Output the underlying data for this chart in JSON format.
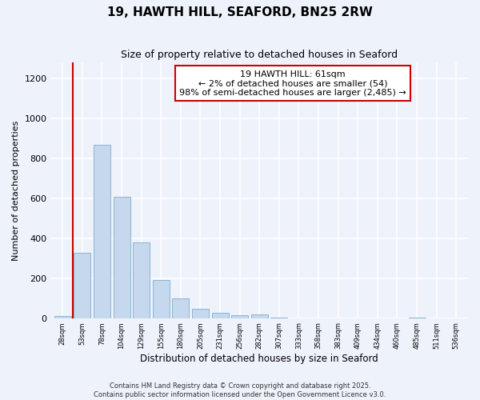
{
  "title": "19, HAWTH HILL, SEAFORD, BN25 2RW",
  "subtitle": "Size of property relative to detached houses in Seaford",
  "xlabel": "Distribution of detached houses by size in Seaford",
  "ylabel": "Number of detached properties",
  "bar_color": "#c5d8ed",
  "bar_edge_color": "#8ab4d4",
  "vline_color": "#cc0000",
  "vline_x": 0.5,
  "annotation_text": "19 HAWTH HILL: 61sqm\n← 2% of detached houses are smaller (54)\n98% of semi-detached houses are larger (2,485) →",
  "annotation_box_color": "#ffffff",
  "annotation_box_edge": "#cc0000",
  "bins": [
    "28sqm",
    "53sqm",
    "78sqm",
    "104sqm",
    "129sqm",
    "155sqm",
    "180sqm",
    "205sqm",
    "231sqm",
    "256sqm",
    "282sqm",
    "307sqm",
    "333sqm",
    "358sqm",
    "383sqm",
    "409sqm",
    "434sqm",
    "460sqm",
    "485sqm",
    "511sqm",
    "536sqm"
  ],
  "values": [
    12,
    325,
    868,
    608,
    378,
    190,
    100,
    45,
    25,
    15,
    18,
    3,
    0,
    0,
    0,
    0,
    0,
    0,
    2,
    0,
    0
  ],
  "ylim": [
    0,
    1280
  ],
  "yticks": [
    0,
    200,
    400,
    600,
    800,
    1000,
    1200
  ],
  "background_color": "#eef2fb",
  "grid_color": "#ffffff",
  "footer_line1": "Contains HM Land Registry data © Crown copyright and database right 2025.",
  "footer_line2": "Contains public sector information licensed under the Open Government Licence v3.0."
}
